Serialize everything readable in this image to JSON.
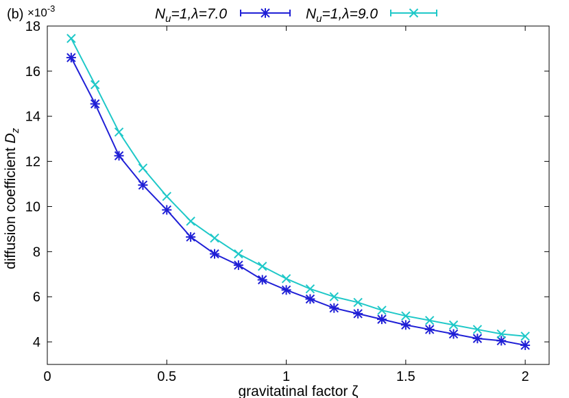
{
  "chart_data": {
    "type": "line",
    "panel_label": "(b)",
    "y_multiplier": "×10",
    "y_multiplier_exp": "-3",
    "xlabel": "gravitatinal factor ζ",
    "ylabel_main": "diffusion coefficient ",
    "ylabel_var": "D",
    "ylabel_sub": "z",
    "xlim": [
      0,
      2.1
    ],
    "ylim": [
      3,
      18
    ],
    "x_ticks": [
      0,
      0.5,
      1,
      1.5,
      2
    ],
    "x_tick_labels": [
      "0",
      "0.5",
      "1",
      "1.5",
      "2"
    ],
    "y_ticks": [
      4,
      6,
      8,
      10,
      12,
      14,
      16,
      18
    ],
    "y_tick_labels": [
      "4",
      "6",
      "8",
      "10",
      "12",
      "14",
      "16",
      "18"
    ],
    "grid": false,
    "legend_position": "top-outside",
    "x": [
      0.1,
      0.2,
      0.3,
      0.4,
      0.5,
      0.6,
      0.7,
      0.8,
      0.9,
      1.0,
      1.1,
      1.2,
      1.3,
      1.4,
      1.5,
      1.6,
      1.7,
      1.8,
      1.9,
      2.0
    ],
    "series": [
      {
        "name_var": "N",
        "name_sub": "u",
        "name_rest": "=1,λ=7.0",
        "color": "#1f1fd6",
        "marker": "asterisk",
        "values": [
          16.6,
          14.55,
          12.25,
          10.95,
          9.85,
          8.65,
          7.9,
          7.4,
          6.75,
          6.3,
          5.9,
          5.5,
          5.25,
          5.0,
          4.75,
          4.55,
          4.35,
          4.15,
          4.05,
          3.85
        ]
      },
      {
        "name_var": "N",
        "name_sub": "u",
        "name_rest": "=1,λ=9.0",
        "color": "#1ec8c8",
        "marker": "x",
        "values": [
          17.45,
          15.4,
          13.3,
          11.7,
          10.45,
          9.35,
          8.6,
          7.9,
          7.35,
          6.8,
          6.35,
          6.0,
          5.75,
          5.4,
          5.15,
          4.95,
          4.75,
          4.55,
          4.35,
          4.25
        ]
      }
    ]
  }
}
